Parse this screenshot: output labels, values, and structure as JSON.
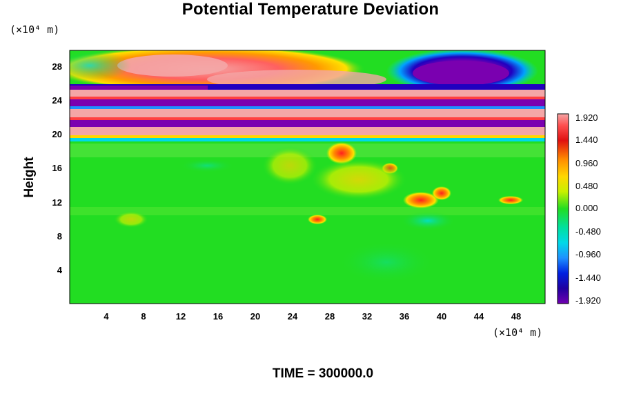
{
  "chart_data": {
    "type": "heatmap",
    "title": "Potential Temperature Deviation",
    "ylabel": "Height",
    "xlabel": "",
    "x_unit": "(×10⁴ m)",
    "y_unit": "(×10⁴ m)",
    "xlim": [
      0,
      51
    ],
    "ylim": [
      0,
      30
    ],
    "xticks": [
      "4",
      "8",
      "12",
      "16",
      "20",
      "24",
      "28",
      "32",
      "36",
      "40",
      "44",
      "48"
    ],
    "yticks": [
      "4",
      "8",
      "12",
      "16",
      "20",
      "24",
      "28"
    ],
    "colorbar": {
      "range": [
        -1.92,
        1.92
      ],
      "labels": [
        "1.920",
        "1.440",
        "0.960",
        "0.480",
        "0.000",
        "-0.480",
        "-0.960",
        "-1.440",
        "-1.920"
      ]
    },
    "field": {
      "description_bands": [
        {
          "y_range": [
            0,
            18
          ],
          "value": 0.0,
          "note": "near zero, mostly green"
        },
        {
          "y_range": [
            20,
            22.5
          ],
          "value": -1.92,
          "note": "alternating strong positive / negative layers"
        },
        {
          "y_range": [
            26,
            29
          ],
          "value": 1.5,
          "note": "positive lobes at x 8-20, negative lobe at x 40-48"
        }
      ]
    },
    "footer": "TIME = 300000.0"
  },
  "colors": {
    "max": "#f4a6a6",
    "min": "#6a0dad",
    "mid": "#22dd22"
  }
}
